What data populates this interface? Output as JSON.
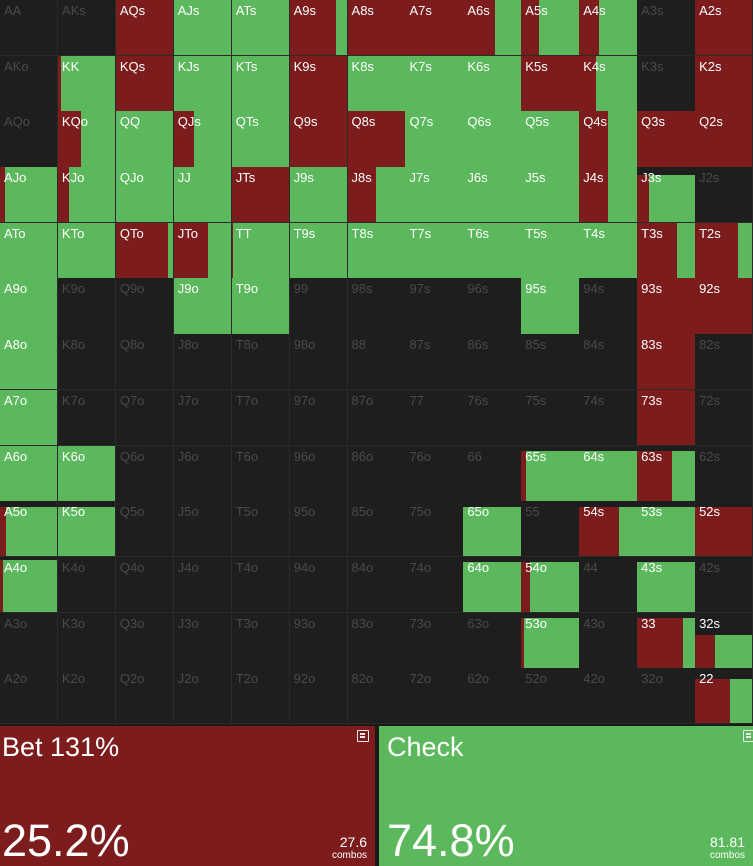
{
  "colors": {
    "bet": "#7c1c1c",
    "check": "#5cb85c",
    "empty": "#1e1e1e"
  },
  "grid": {
    "rows": [
      [
        "AA",
        "AKs",
        "AQs",
        "AJs",
        "ATs",
        "A9s",
        "A8s",
        "A7s",
        "A6s",
        "A5s",
        "A4s",
        "A3s",
        "A2s"
      ],
      [
        "AKo",
        "KK",
        "KQs",
        "KJs",
        "KTs",
        "K9s",
        "K8s",
        "K7s",
        "K6s",
        "K5s",
        "K4s",
        "K3s",
        "K2s"
      ],
      [
        "AQo",
        "KQo",
        "QQ",
        "QJs",
        "QTs",
        "Q9s",
        "Q8s",
        "Q7s",
        "Q6s",
        "Q5s",
        "Q4s",
        "Q3s",
        "Q2s"
      ],
      [
        "AJo",
        "KJo",
        "QJo",
        "JJ",
        "JTs",
        "J9s",
        "J8s",
        "J7s",
        "J6s",
        "J5s",
        "J4s",
        "J3s",
        "J2s"
      ],
      [
        "ATo",
        "KTo",
        "QTo",
        "JTo",
        "TT",
        "T9s",
        "T8s",
        "T7s",
        "T6s",
        "T5s",
        "T4s",
        "T3s",
        "T2s"
      ],
      [
        "A9o",
        "K9o",
        "Q9o",
        "J9o",
        "T9o",
        "99",
        "98s",
        "97s",
        "96s",
        "95s",
        "94s",
        "93s",
        "92s"
      ],
      [
        "A8o",
        "K8o",
        "Q8o",
        "J8o",
        "T8o",
        "98o",
        "88",
        "87s",
        "86s",
        "85s",
        "84s",
        "83s",
        "82s"
      ],
      [
        "A7o",
        "K7o",
        "Q7o",
        "J7o",
        "T7o",
        "97o",
        "87o",
        "77",
        "76s",
        "75s",
        "74s",
        "73s",
        "72s"
      ],
      [
        "A6o",
        "K6o",
        "Q6o",
        "J6o",
        "T6o",
        "96o",
        "86o",
        "76o",
        "66",
        "65s",
        "64s",
        "63s",
        "62s"
      ],
      [
        "A5o",
        "K5o",
        "Q5o",
        "J5o",
        "T5o",
        "95o",
        "85o",
        "75o",
        "65o",
        "55",
        "54s",
        "53s",
        "52s"
      ],
      [
        "A4o",
        "K4o",
        "Q4o",
        "J4o",
        "T4o",
        "94o",
        "84o",
        "74o",
        "64o",
        "54o",
        "44",
        "43s",
        "42s"
      ],
      [
        "A3o",
        "K3o",
        "Q3o",
        "J3o",
        "T3o",
        "93o",
        "83o",
        "73o",
        "63o",
        "53o",
        "43o",
        "33",
        "32s"
      ],
      [
        "A2o",
        "K2o",
        "Q2o",
        "J2o",
        "T2o",
        "92o",
        "82o",
        "72o",
        "62o",
        "52o",
        "42o",
        "32o",
        "22"
      ]
    ],
    "strategy": [
      [
        [
          0,
          0,
          0
        ],
        [
          0,
          0,
          0
        ],
        [
          1,
          1,
          0
        ],
        [
          1,
          0,
          1
        ],
        [
          1,
          0,
          1
        ],
        [
          1,
          0.8,
          0.2
        ],
        [
          1,
          1,
          0
        ],
        [
          1,
          1,
          0
        ],
        [
          1,
          0.55,
          0.45
        ],
        [
          1,
          0.3,
          0.7
        ],
        [
          1,
          0.35,
          0.65
        ],
        [
          0,
          0,
          0
        ],
        [
          1,
          1,
          0
        ]
      ],
      [
        [
          0,
          0,
          0
        ],
        [
          1,
          0.05,
          0.95
        ],
        [
          1,
          1,
          0
        ],
        [
          1,
          0,
          1
        ],
        [
          1,
          0,
          1
        ],
        [
          1,
          1,
          0
        ],
        [
          1,
          0,
          1
        ],
        [
          1,
          0,
          1
        ],
        [
          1,
          0,
          1
        ],
        [
          1,
          1,
          0
        ],
        [
          1,
          0.3,
          0.7
        ],
        [
          0,
          0,
          0
        ],
        [
          1,
          1,
          0
        ]
      ],
      [
        [
          0,
          0,
          0
        ],
        [
          1,
          0.4,
          0.6
        ],
        [
          1,
          0,
          1
        ],
        [
          1,
          0.35,
          0.65
        ],
        [
          1,
          0,
          1
        ],
        [
          1,
          1,
          0
        ],
        [
          1,
          1,
          0
        ],
        [
          1,
          0,
          1
        ],
        [
          1,
          0,
          1
        ],
        [
          1,
          0,
          1
        ],
        [
          1,
          0.5,
          0.5
        ],
        [
          1,
          1,
          0
        ],
        [
          1,
          1,
          0
        ]
      ],
      [
        [
          1,
          0.08,
          0.92
        ],
        [
          1,
          0.2,
          0.8
        ],
        [
          1,
          0,
          1
        ],
        [
          1,
          0,
          1
        ],
        [
          1,
          1,
          0
        ],
        [
          1,
          0,
          1
        ],
        [
          1,
          0.5,
          0.5
        ],
        [
          1,
          0,
          1
        ],
        [
          1,
          0,
          1
        ],
        [
          1,
          0,
          1
        ],
        [
          1,
          0.5,
          0.5
        ],
        [
          0.85,
          0.2,
          0.8
        ],
        [
          0,
          0,
          0
        ]
      ],
      [
        [
          1,
          0,
          1
        ],
        [
          1,
          0,
          1
        ],
        [
          1,
          0.9,
          0.1
        ],
        [
          1,
          0.6,
          0.4
        ],
        [
          1,
          0.02,
          0.98
        ],
        [
          1,
          0,
          1
        ],
        [
          1,
          0,
          1
        ],
        [
          1,
          0,
          1
        ],
        [
          1,
          0,
          1
        ],
        [
          1,
          0,
          1
        ],
        [
          1,
          0,
          1
        ],
        [
          1,
          0.7,
          0.3
        ],
        [
          1,
          0.75,
          0.25
        ]
      ],
      [
        [
          1,
          0,
          1
        ],
        [
          0,
          0,
          0
        ],
        [
          0,
          0,
          0
        ],
        [
          1,
          0,
          1
        ],
        [
          1,
          0,
          1
        ],
        [
          0,
          0,
          0
        ],
        [
          0,
          0,
          0
        ],
        [
          0,
          0,
          0
        ],
        [
          0,
          0,
          0
        ],
        [
          1,
          0,
          1
        ],
        [
          0,
          0,
          0
        ],
        [
          1,
          1,
          0
        ],
        [
          1,
          1,
          0
        ]
      ],
      [
        [
          1,
          0,
          1
        ],
        [
          0,
          0,
          0
        ],
        [
          0,
          0,
          0
        ],
        [
          0,
          0,
          0
        ],
        [
          0,
          0,
          0
        ],
        [
          0,
          0,
          0
        ],
        [
          0,
          0,
          0
        ],
        [
          0,
          0,
          0
        ],
        [
          0,
          0,
          0
        ],
        [
          0,
          0,
          0
        ],
        [
          0,
          0,
          0
        ],
        [
          1,
          1,
          0
        ],
        [
          0,
          0,
          0
        ]
      ],
      [
        [
          1,
          0,
          1
        ],
        [
          0,
          0,
          0
        ],
        [
          0,
          0,
          0
        ],
        [
          0,
          0,
          0
        ],
        [
          0,
          0,
          0
        ],
        [
          0,
          0,
          0
        ],
        [
          0,
          0,
          0
        ],
        [
          0,
          0,
          0
        ],
        [
          0,
          0,
          0
        ],
        [
          0,
          0,
          0
        ],
        [
          0,
          0,
          0
        ],
        [
          1,
          1,
          0
        ],
        [
          0,
          0,
          0
        ]
      ],
      [
        [
          1,
          0,
          1
        ],
        [
          1,
          0,
          1
        ],
        [
          0,
          0,
          0
        ],
        [
          0,
          0,
          0
        ],
        [
          0,
          0,
          0
        ],
        [
          0,
          0,
          0
        ],
        [
          0,
          0,
          0
        ],
        [
          0,
          0,
          0
        ],
        [
          0,
          0,
          0
        ],
        [
          0.9,
          0.08,
          0.92
        ],
        [
          0.9,
          0,
          1
        ],
        [
          0.9,
          0.6,
          0.4
        ],
        [
          0,
          0,
          0
        ]
      ],
      [
        [
          0.9,
          0.1,
          0.9
        ],
        [
          0.9,
          0,
          1
        ],
        [
          0,
          0,
          0
        ],
        [
          0,
          0,
          0
        ],
        [
          0,
          0,
          0
        ],
        [
          0,
          0,
          0
        ],
        [
          0,
          0,
          0
        ],
        [
          0,
          0,
          0
        ],
        [
          0.9,
          0,
          1
        ],
        [
          0,
          0,
          0
        ],
        [
          0.9,
          0.7,
          0.3
        ],
        [
          0.9,
          0,
          1
        ],
        [
          0.9,
          1,
          0
        ]
      ],
      [
        [
          0.95,
          0.05,
          0.95
        ],
        [
          0,
          0,
          0
        ],
        [
          0,
          0,
          0
        ],
        [
          0,
          0,
          0
        ],
        [
          0,
          0,
          0
        ],
        [
          0,
          0,
          0
        ],
        [
          0,
          0,
          0
        ],
        [
          0,
          0,
          0
        ],
        [
          0.9,
          0,
          1
        ],
        [
          0.9,
          0.15,
          0.85
        ],
        [
          0,
          0,
          0
        ],
        [
          0.9,
          0,
          1
        ],
        [
          0,
          0,
          0
        ]
      ],
      [
        [
          0,
          0,
          0
        ],
        [
          0,
          0,
          0
        ],
        [
          0,
          0,
          0
        ],
        [
          0,
          0,
          0
        ],
        [
          0,
          0,
          0
        ],
        [
          0,
          0,
          0
        ],
        [
          0,
          0,
          0
        ],
        [
          0,
          0,
          0
        ],
        [
          0,
          0,
          0
        ],
        [
          0.9,
          0.05,
          0.95
        ],
        [
          0,
          0,
          0
        ],
        [
          0.9,
          0.8,
          0.2
        ],
        [
          0.6,
          0.35,
          0.65
        ]
      ],
      [
        [
          0,
          0,
          0
        ],
        [
          0,
          0,
          0
        ],
        [
          0,
          0,
          0
        ],
        [
          0,
          0,
          0
        ],
        [
          0,
          0,
          0
        ],
        [
          0,
          0,
          0
        ],
        [
          0,
          0,
          0
        ],
        [
          0,
          0,
          0
        ],
        [
          0,
          0,
          0
        ],
        [
          0,
          0,
          0
        ],
        [
          0,
          0,
          0
        ],
        [
          0,
          0,
          0
        ],
        [
          0.8,
          0.6,
          0.4
        ]
      ]
    ]
  },
  "actions": {
    "bet": {
      "label": "Bet 131%",
      "percent": "25.2%",
      "combos": "27.6",
      "combos_unit": "combos",
      "icon": "note-icon"
    },
    "check": {
      "label": "Check",
      "percent": "74.8%",
      "combos": "81.81",
      "combos_unit": "combos",
      "icon": "note-icon"
    }
  }
}
